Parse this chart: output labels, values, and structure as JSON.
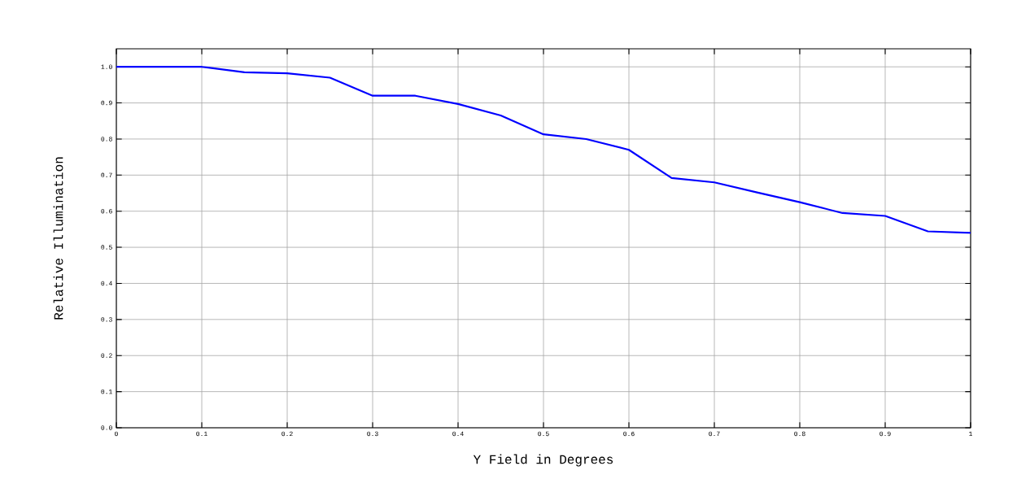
{
  "chart_data": {
    "type": "line",
    "xlabel": "Y Field in Degrees",
    "ylabel": "Relative Illumination",
    "x": [
      0,
      0.05,
      0.1,
      0.15,
      0.2,
      0.25,
      0.3,
      0.35,
      0.4,
      0.45,
      0.5,
      0.55,
      0.6,
      0.65,
      0.7,
      0.75,
      0.8,
      0.85,
      0.9,
      0.95,
      1.0
    ],
    "series": [
      {
        "color": "#0000ff",
        "values": [
          1.0,
          1.0,
          1.0,
          0.985,
          0.982,
          0.97,
          0.92,
          0.92,
          0.897,
          0.865,
          0.813,
          0.8,
          0.77,
          0.692,
          0.68,
          0.652,
          0.625,
          0.595,
          0.587,
          0.544,
          0.54
        ]
      }
    ],
    "xlim": [
      0,
      1
    ],
    "ylim": [
      0,
      1.05
    ],
    "xticks": [
      0,
      0.1,
      0.2,
      0.3,
      0.4,
      0.5,
      0.6,
      0.7,
      0.8,
      0.9,
      1
    ],
    "yticks": [
      {
        "value": 0,
        "label": "0.0"
      },
      0.1,
      0.2,
      0.3,
      0.4,
      0.5,
      0.6,
      0.7,
      0.8,
      0.9,
      {
        "value": 1,
        "label": "1.0"
      }
    ],
    "grid": true,
    "marker": "none",
    "line_style": "solid"
  }
}
